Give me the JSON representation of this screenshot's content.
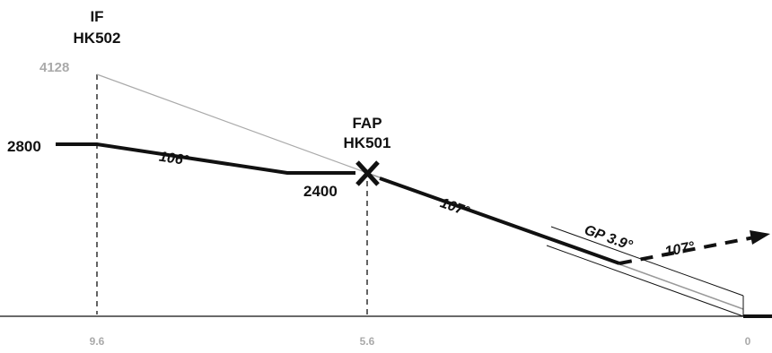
{
  "fixes": {
    "if": {
      "type": "IF",
      "name": "HK502"
    },
    "fap": {
      "type": "FAP",
      "name": "HK501"
    }
  },
  "altitudes": {
    "if_alt": "4128",
    "initial": "2800",
    "fap_alt": "2400"
  },
  "courses": {
    "initial": "106°",
    "final": "107°",
    "missed": "107°"
  },
  "glidepath": "GP 3.9°",
  "distance_scale": [
    "9.6",
    "5.6",
    "0"
  ],
  "colors": {
    "ink": "#111111",
    "secondary": "#aaaaaa",
    "glidepath_line": "#999999"
  }
}
